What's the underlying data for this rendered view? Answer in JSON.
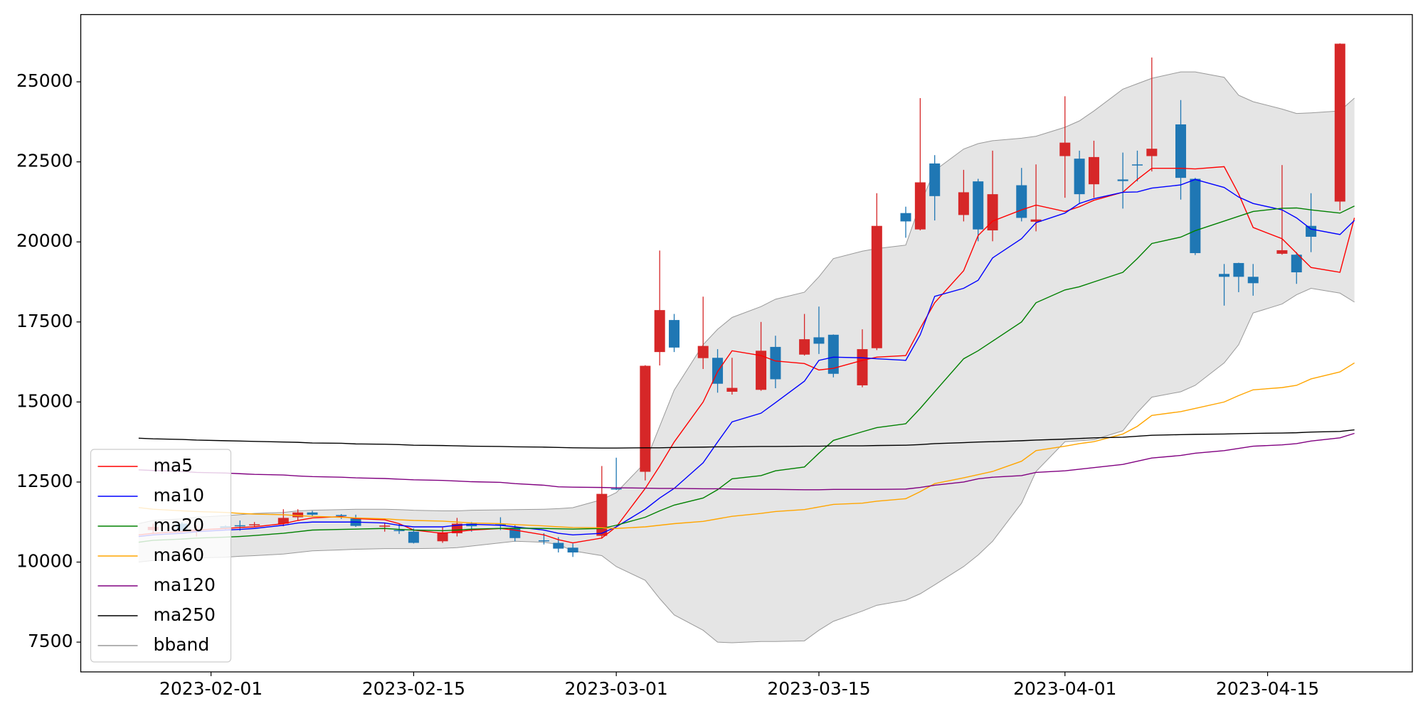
{
  "chart_data": {
    "type": "candlestick",
    "x": [
      "2023-01-27",
      "2023-01-28",
      "2023-01-30",
      "2023-01-31",
      "2023-02-02",
      "2023-02-03",
      "2023-02-04",
      "2023-02-06",
      "2023-02-07",
      "2023-02-08",
      "2023-02-10",
      "2023-02-11",
      "2023-02-13",
      "2023-02-14",
      "2023-02-15",
      "2023-02-17",
      "2023-02-18",
      "2023-02-19",
      "2023-02-21",
      "2023-02-22",
      "2023-02-24",
      "2023-02-25",
      "2023-02-26",
      "2023-02-28",
      "2023-03-01",
      "2023-03-03",
      "2023-03-04",
      "2023-03-05",
      "2023-03-07",
      "2023-03-08",
      "2023-03-09",
      "2023-03-11",
      "2023-03-12",
      "2023-03-14",
      "2023-03-15",
      "2023-03-16",
      "2023-03-18",
      "2023-03-19",
      "2023-03-21",
      "2023-03-22",
      "2023-03-23",
      "2023-03-25",
      "2023-03-26",
      "2023-03-27",
      "2023-03-29",
      "2023-03-30",
      "2023-04-01",
      "2023-04-02",
      "2023-04-03",
      "2023-04-05",
      "2023-04-06",
      "2023-04-07",
      "2023-04-09",
      "2023-04-10",
      "2023-04-12",
      "2023-04-13",
      "2023-04-14",
      "2023-04-16",
      "2023-04-17",
      "2023-04-18",
      "2023-04-20",
      "2023-04-21"
    ],
    "open": [
      null,
      11000,
      11200,
      10950,
      11120,
      11150,
      11160,
      11200,
      11400,
      11550,
      11470,
      11360,
      11120,
      11000,
      10950,
      10650,
      10900,
      11200,
      11180,
      11050,
      10680,
      10600,
      10450,
      10820,
      12300,
      12820,
      16560,
      17560,
      16370,
      16380,
      15320,
      15380,
      16720,
      16480,
      17020,
      17100,
      15520,
      16680,
      20900,
      20390,
      22450,
      20840,
      21890,
      20360,
      21770,
      20630,
      22680,
      22600,
      21800,
      21950,
      22420,
      22680,
      23670,
      21970,
      19000,
      19340,
      18910,
      19630,
      19600,
      20500,
      21260,
      null
    ],
    "high": [
      null,
      11200,
      11250,
      11150,
      11150,
      11300,
      11250,
      11650,
      11650,
      11600,
      11500,
      11480,
      11230,
      11200,
      11050,
      11080,
      11380,
      11250,
      11400,
      11150,
      10900,
      10780,
      10580,
      13000,
      13260,
      16150,
      19730,
      17750,
      18290,
      16650,
      16380,
      17500,
      17070,
      17750,
      17980,
      17110,
      17270,
      21520,
      21100,
      24490,
      22710,
      22250,
      21970,
      22850,
      22310,
      22420,
      24550,
      22850,
      23160,
      22790,
      22850,
      25760,
      24430,
      22000,
      19310,
      19350,
      19310,
      22400,
      19680,
      21520,
      26200,
      null
    ],
    "low": [
      null,
      10900,
      10950,
      10800,
      11020,
      10980,
      11100,
      11120,
      11300,
      11430,
      11350,
      11100,
      10950,
      10880,
      10580,
      10600,
      10800,
      10950,
      11000,
      10650,
      10550,
      10300,
      10160,
      10730,
      12250,
      12550,
      16140,
      16560,
      16030,
      15290,
      15230,
      15350,
      15430,
      16450,
      16500,
      15770,
      15460,
      16620,
      20130,
      20360,
      20670,
      20640,
      20020,
      20020,
      20640,
      20330,
      21380,
      21210,
      21380,
      21040,
      21890,
      22200,
      21320,
      19590,
      18010,
      18430,
      18320,
      19600,
      18690,
      19680,
      20980,
      null
    ],
    "close": [
      null,
      11100,
      10980,
      11020,
      11050,
      11130,
      11180,
      11380,
      11550,
      11480,
      11450,
      11130,
      11140,
      10980,
      10600,
      10930,
      11200,
      11120,
      11150,
      10750,
      10650,
      10420,
      10300,
      12130,
      12280,
      16130,
      17870,
      16700,
      16750,
      15570,
      15440,
      16600,
      15710,
      16960,
      16820,
      15880,
      16650,
      20500,
      20640,
      21860,
      21430,
      21550,
      20390,
      21490,
      20750,
      20700,
      23100,
      21490,
      22650,
      21900,
      22400,
      22910,
      22000,
      19650,
      18910,
      18910,
      18710,
      19740,
      19050,
      20160,
      26190,
      null
    ],
    "up_color": "#d62728",
    "down_color": "#1f77b4",
    "series": [
      {
        "name": "ma5",
        "color": "#ff0000",
        "values": [
          10850,
          10900,
          10950,
          11000,
          11050,
          11080,
          11100,
          11200,
          11300,
          11380,
          11420,
          11360,
          11320,
          11200,
          11000,
          10900,
          10950,
          11000,
          11050,
          11000,
          10850,
          10700,
          10600,
          10750,
          11100,
          12300,
          13000,
          13750,
          15000,
          15950,
          16600,
          16450,
          16280,
          16200,
          16000,
          16050,
          16300,
          16400,
          16450,
          17300,
          18100,
          19100,
          20200,
          20650,
          21000,
          21150,
          20950,
          21100,
          21300,
          21550,
          21950,
          22300,
          22300,
          22280,
          22350,
          21500,
          20450,
          20100,
          19650,
          19200,
          19050,
          20750
        ]
      },
      {
        "name": "ma10",
        "color": "#0000ff",
        "values": [
          10800,
          10850,
          10900,
          10950,
          11000,
          11020,
          11050,
          11150,
          11220,
          11250,
          11250,
          11250,
          11220,
          11150,
          11100,
          11100,
          11150,
          11180,
          11150,
          11100,
          11000,
          10900,
          10850,
          10900,
          11100,
          11650,
          12000,
          12300,
          13100,
          13750,
          14380,
          14650,
          14980,
          15650,
          16300,
          16400,
          16380,
          16350,
          16300,
          17100,
          18300,
          18550,
          18800,
          19500,
          20100,
          20600,
          20900,
          21200,
          21350,
          21550,
          21560,
          21680,
          21780,
          21950,
          21700,
          21400,
          21200,
          21000,
          20750,
          20400,
          20230,
          20670
        ]
      },
      {
        "name": "ma20",
        "color": "#008000",
        "values": [
          10620,
          10680,
          10720,
          10750,
          10780,
          10800,
          10830,
          10900,
          10950,
          11000,
          11020,
          11030,
          11050,
          11020,
          11000,
          10980,
          11000,
          11030,
          11050,
          11060,
          11050,
          11040,
          11030,
          11050,
          11150,
          11400,
          11600,
          11780,
          12000,
          12260,
          12600,
          12700,
          12850,
          12970,
          13400,
          13800,
          14070,
          14200,
          14320,
          14800,
          15320,
          16350,
          16600,
          16900,
          17500,
          18100,
          18500,
          18600,
          18750,
          19050,
          19480,
          19950,
          20150,
          20350,
          20650,
          20800,
          20950,
          21050,
          21060,
          21000,
          20900,
          21120
        ]
      },
      {
        "name": "ma60",
        "color": "#ffa500",
        "values": [
          11700,
          11650,
          11600,
          11580,
          11550,
          11520,
          11500,
          11480,
          11450,
          11430,
          11400,
          11380,
          11350,
          11320,
          11300,
          11280,
          11250,
          11220,
          11200,
          11170,
          11130,
          11100,
          11080,
          11070,
          11050,
          11100,
          11150,
          11200,
          11270,
          11350,
          11430,
          11520,
          11580,
          11640,
          11720,
          11800,
          11840,
          11900,
          11980,
          12200,
          12450,
          12630,
          12730,
          12830,
          13150,
          13480,
          13620,
          13700,
          13760,
          14000,
          14240,
          14580,
          14700,
          14800,
          15000,
          15200,
          15380,
          15450,
          15520,
          15720,
          15940,
          16220
        ]
      },
      {
        "name": "ma120",
        "color": "#800080",
        "values": [
          12880,
          12860,
          12830,
          12800,
          12780,
          12760,
          12740,
          12720,
          12690,
          12670,
          12650,
          12630,
          12610,
          12590,
          12570,
          12550,
          12530,
          12510,
          12490,
          12450,
          12400,
          12350,
          12340,
          12330,
          12320,
          12310,
          12300,
          12300,
          12290,
          12290,
          12280,
          12270,
          12270,
          12260,
          12260,
          12270,
          12270,
          12270,
          12280,
          12330,
          12400,
          12500,
          12600,
          12650,
          12700,
          12800,
          12850,
          12900,
          12950,
          13050,
          13150,
          13250,
          13330,
          13400,
          13480,
          13550,
          13620,
          13660,
          13700,
          13780,
          13880,
          14020
        ]
      },
      {
        "name": "ma250",
        "color": "#000000",
        "values": [
          13870,
          13850,
          13830,
          13810,
          13790,
          13780,
          13770,
          13750,
          13740,
          13720,
          13710,
          13690,
          13680,
          13670,
          13650,
          13640,
          13630,
          13620,
          13610,
          13600,
          13590,
          13580,
          13570,
          13560,
          13560,
          13570,
          13570,
          13580,
          13590,
          13600,
          13600,
          13610,
          13610,
          13620,
          13620,
          13630,
          13630,
          13640,
          13650,
          13670,
          13700,
          13730,
          13750,
          13760,
          13790,
          13810,
          13840,
          13860,
          13880,
          13900,
          13930,
          13960,
          13980,
          13990,
          14000,
          14010,
          14020,
          14030,
          14040,
          14060,
          14080,
          14130
        ]
      }
    ],
    "band": {
      "name": "bband",
      "color": "#999999",
      "fill": "#e5e5e5",
      "upper": [
        11200,
        11300,
        11350,
        11400,
        11450,
        11480,
        11520,
        11550,
        11600,
        11620,
        11640,
        11650,
        11650,
        11640,
        11620,
        11600,
        11600,
        11620,
        11630,
        11640,
        11650,
        11670,
        11700,
        11950,
        12170,
        13110,
        14240,
        15370,
        16790,
        17270,
        17640,
        17980,
        18210,
        18430,
        18910,
        19480,
        19710,
        19790,
        19900,
        21180,
        22230,
        22900,
        23070,
        23160,
        23240,
        23300,
        23580,
        23780,
        24090,
        24770,
        24940,
        25110,
        25310,
        25310,
        25140,
        24580,
        24380,
        24150,
        24010,
        24030,
        24090,
        24490
      ],
      "lower": [
        10000,
        10050,
        10100,
        10130,
        10150,
        10180,
        10200,
        10250,
        10300,
        10350,
        10380,
        10400,
        10420,
        10420,
        10420,
        10430,
        10450,
        10500,
        10600,
        10650,
        10620,
        10550,
        10350,
        10200,
        9860,
        9430,
        8860,
        8350,
        7870,
        7500,
        7480,
        7520,
        7520,
        7540,
        7870,
        8150,
        8470,
        8650,
        8810,
        9010,
        9290,
        9860,
        10220,
        10650,
        11840,
        12830,
        13760,
        13790,
        13820,
        14100,
        14670,
        15150,
        15320,
        15520,
        16220,
        16790,
        17780,
        18060,
        18350,
        18550,
        18400,
        18120
      ]
    },
    "xlim": [
      "2023-01-23",
      "2023-04-25"
    ],
    "xticks": [
      "2023-02-01",
      "2023-02-15",
      "2023-03-01",
      "2023-03-15",
      "2023-04-01",
      "2023-04-15"
    ],
    "ylim": [
      6570,
      27100
    ],
    "yticks": [
      7500,
      10000,
      12500,
      15000,
      17500,
      20000,
      22500,
      25000
    ],
    "legend": "lower left"
  }
}
